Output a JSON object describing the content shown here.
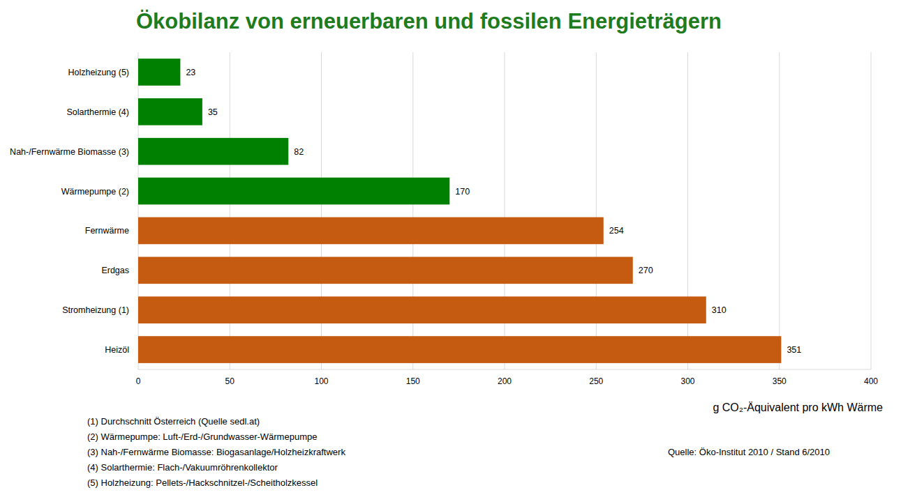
{
  "chart_data": {
    "type": "bar",
    "orientation": "horizontal",
    "title": "Ökobilanz von erneuerbaren und fossilen Energieträgern",
    "categories": [
      "Holzheizung (5)",
      "Solarthermie (4)",
      "Nah-/Fernwärme Biomasse (3)",
      "Wärmepumpe (2)",
      "Fernwärme",
      "Erdgas",
      "Stromheizung (1)",
      "Heizöl"
    ],
    "values": [
      23,
      35,
      82,
      170,
      254,
      270,
      310,
      351
    ],
    "colors": [
      "#008000",
      "#008000",
      "#008000",
      "#008000",
      "#c55a11",
      "#c55a11",
      "#c55a11",
      "#c55a11"
    ],
    "xlim": [
      0,
      400
    ],
    "xticks": [
      0,
      50,
      100,
      150,
      200,
      250,
      300,
      350,
      400
    ],
    "grid": true,
    "data_labels": true,
    "xlabel": "g CO₂-Äquivalent pro kWh Wärme",
    "annotations": [
      "(1) Durchschnitt Österreich (Quelle sedl.at)",
      "(2) Wärmepumpe: Luft-/Erd-/Grundwasser-Wärmepumpe",
      "(3) Nah-/Fernwärme Biomasse: Biogasanlage/Holzheizkraftwerk",
      "(4) Solarthermie: Flach-/Vakuumröhrenkollektor",
      "(5) Holzheizung: Pellets-/Hackschnitzel-/Scheitholzkessel"
    ],
    "source": "Quelle: Öko-Institut 2010 / Stand 6/2010"
  }
}
